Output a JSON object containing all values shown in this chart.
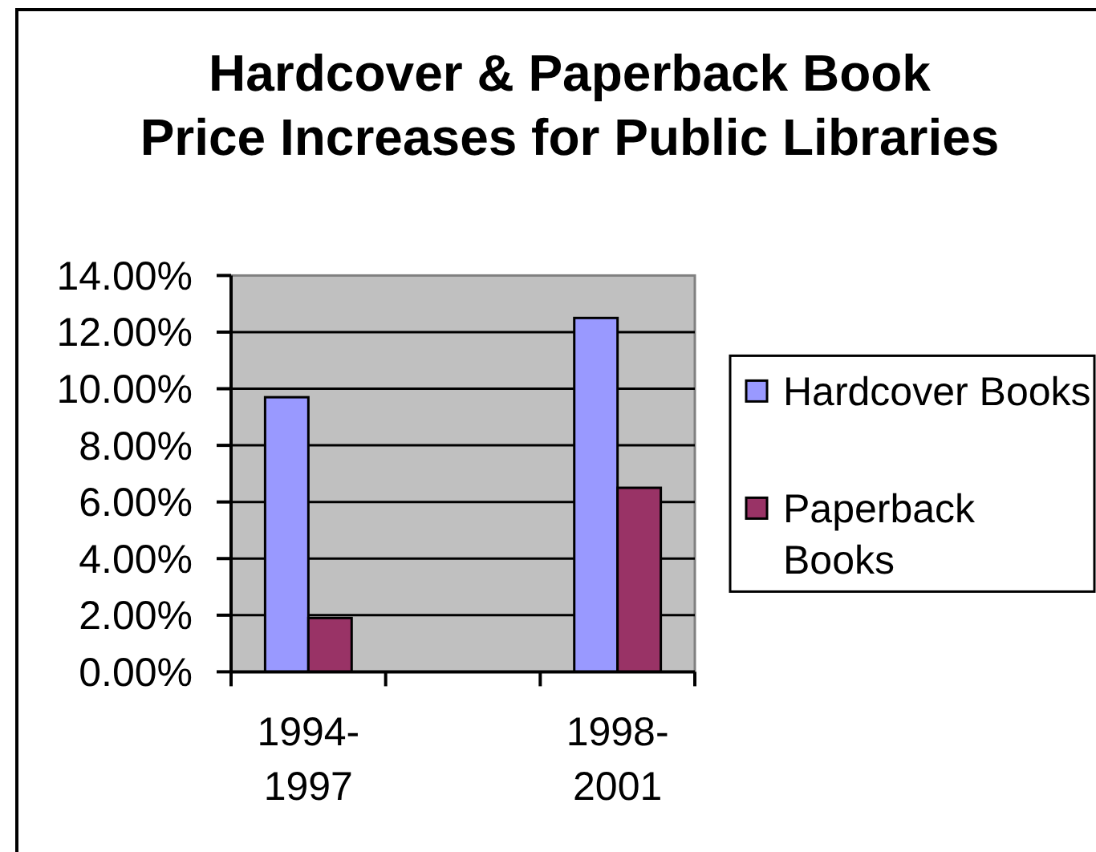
{
  "chart_data": {
    "type": "bar",
    "title": "Hardcover & Paperback Book\nPrice Increases for Public Libraries",
    "categories": [
      "1994-1997",
      null,
      "1998-2001"
    ],
    "series": [
      {
        "name": "Hardcover Books",
        "color": "#9999ff",
        "values": [
          9.7,
          null,
          12.5
        ]
      },
      {
        "name": "Paperback Books",
        "color": "#993366",
        "values": [
          1.9,
          null,
          6.5
        ]
      }
    ],
    "ylim": [
      0,
      14
    ],
    "yticks": [
      {
        "value": 0,
        "label": "0.00%"
      },
      {
        "value": 2,
        "label": "2.00%"
      },
      {
        "value": 4,
        "label": "4.00%"
      },
      {
        "value": 6,
        "label": "6.00%"
      },
      {
        "value": 8,
        "label": "8.00%"
      },
      {
        "value": 10,
        "label": "10.00%"
      },
      {
        "value": 12,
        "label": "12.00%"
      },
      {
        "value": 14,
        "label": "14.00%"
      }
    ],
    "grid": "y",
    "legend": "right"
  }
}
